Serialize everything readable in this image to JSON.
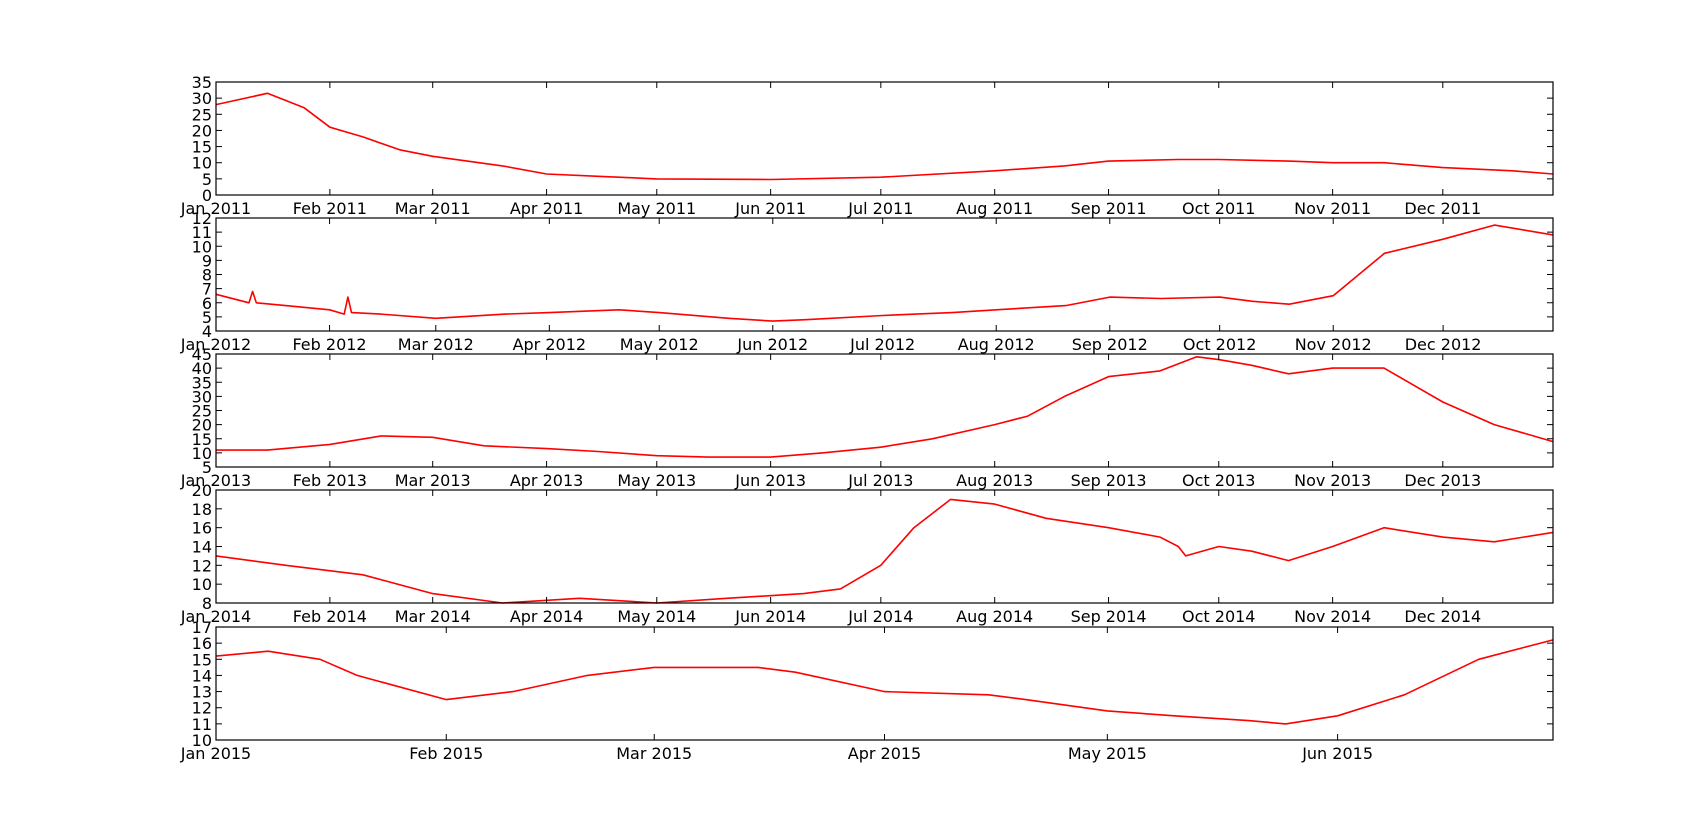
{
  "line_color": "#ff0000",
  "chart_data": [
    {
      "type": "line",
      "series": [
        {
          "x": [
            "2011-01-01",
            "2011-01-15",
            "2011-01-25",
            "2011-02-01",
            "2011-02-10",
            "2011-02-20",
            "2011-03-01",
            "2011-03-20",
            "2011-04-01",
            "2011-04-15",
            "2011-05-01",
            "2011-06-01",
            "2011-07-01",
            "2011-08-01",
            "2011-08-20",
            "2011-09-01",
            "2011-09-20",
            "2011-10-01",
            "2011-10-20",
            "2011-11-01",
            "2011-11-15",
            "2011-12-01",
            "2011-12-20",
            "2011-12-31"
          ],
          "y": [
            28,
            31.5,
            27,
            21,
            18,
            14,
            12,
            9,
            6.5,
            5.8,
            5,
            4.8,
            5.5,
            7.5,
            9,
            10.5,
            11,
            11,
            10.5,
            10,
            10,
            8.5,
            7.5,
            6.5
          ]
        }
      ],
      "x_ticks": [
        "2011-01-01",
        "2011-02-01",
        "2011-03-01",
        "2011-04-01",
        "2011-05-01",
        "2011-06-01",
        "2011-07-01",
        "2011-08-01",
        "2011-09-01",
        "2011-10-01",
        "2011-11-01",
        "2011-12-01"
      ],
      "x_tick_labels": [
        "Jan 2011",
        "Feb 2011",
        "Mar 2011",
        "Apr 2011",
        "May 2011",
        "Jun 2011",
        "Jul 2011",
        "Aug 2011",
        "Sep 2011",
        "Oct 2011",
        "Nov 2011",
        "Dec 2011"
      ],
      "xlim": [
        "2011-01-01",
        "2011-12-31"
      ],
      "ylim": [
        0,
        35
      ],
      "y_ticks": [
        0,
        5,
        10,
        15,
        20,
        25,
        30,
        35
      ]
    },
    {
      "type": "line",
      "series": [
        {
          "x": [
            "2012-01-01",
            "2012-01-10",
            "2012-01-11",
            "2012-01-12",
            "2012-01-20",
            "2012-02-01",
            "2012-02-05",
            "2012-02-06",
            "2012-02-07",
            "2012-02-15",
            "2012-03-01",
            "2012-03-20",
            "2012-04-01",
            "2012-04-20",
            "2012-05-01",
            "2012-05-20",
            "2012-06-01",
            "2012-06-10",
            "2012-07-01",
            "2012-07-20",
            "2012-08-01",
            "2012-08-20",
            "2012-09-01",
            "2012-09-15",
            "2012-10-01",
            "2012-10-10",
            "2012-10-20",
            "2012-11-01",
            "2012-11-15",
            "2012-12-01",
            "2012-12-15",
            "2012-12-31"
          ],
          "y": [
            6.6,
            6.0,
            6.8,
            6.0,
            5.8,
            5.5,
            5.2,
            6.4,
            5.3,
            5.2,
            4.9,
            5.2,
            5.3,
            5.5,
            5.3,
            4.9,
            4.7,
            4.8,
            5.1,
            5.3,
            5.5,
            5.8,
            6.4,
            6.3,
            6.4,
            6.1,
            5.9,
            6.5,
            9.5,
            10.5,
            11.5,
            10.8
          ]
        }
      ],
      "x_ticks": [
        "2012-01-01",
        "2012-02-01",
        "2012-03-01",
        "2012-04-01",
        "2012-05-01",
        "2012-06-01",
        "2012-07-01",
        "2012-08-01",
        "2012-09-01",
        "2012-10-01",
        "2012-11-01",
        "2012-12-01"
      ],
      "x_tick_labels": [
        "Jan 2012",
        "Feb 2012",
        "Mar 2012",
        "Apr 2012",
        "May 2012",
        "Jun 2012",
        "Jul 2012",
        "Aug 2012",
        "Sep 2012",
        "Oct 2012",
        "Nov 2012",
        "Dec 2012"
      ],
      "xlim": [
        "2012-01-01",
        "2012-12-31"
      ],
      "ylim": [
        4,
        12
      ],
      "y_ticks": [
        4,
        5,
        6,
        7,
        8,
        9,
        10,
        11,
        12
      ]
    },
    {
      "type": "line",
      "series": [
        {
          "x": [
            "2013-01-01",
            "2013-01-15",
            "2013-02-01",
            "2013-02-15",
            "2013-03-01",
            "2013-03-15",
            "2013-04-01",
            "2013-04-15",
            "2013-05-01",
            "2013-05-15",
            "2013-06-01",
            "2013-06-15",
            "2013-07-01",
            "2013-07-15",
            "2013-08-01",
            "2013-08-10",
            "2013-08-20",
            "2013-09-01",
            "2013-09-15",
            "2013-09-25",
            "2013-10-01",
            "2013-10-10",
            "2013-10-20",
            "2013-11-01",
            "2013-11-15",
            "2013-12-01",
            "2013-12-15",
            "2013-12-31"
          ],
          "y": [
            11,
            11,
            13,
            16,
            15.5,
            12.5,
            11.5,
            10.5,
            9,
            8.5,
            8.5,
            10,
            12,
            15,
            20,
            23,
            30,
            37,
            39,
            44,
            43,
            41,
            38,
            40,
            40,
            28,
            20,
            14
          ]
        }
      ],
      "x_ticks": [
        "2013-01-01",
        "2013-02-01",
        "2013-03-01",
        "2013-04-01",
        "2013-05-01",
        "2013-06-01",
        "2013-07-01",
        "2013-08-01",
        "2013-09-01",
        "2013-10-01",
        "2013-11-01",
        "2013-12-01"
      ],
      "x_tick_labels": [
        "Jan 2013",
        "Feb 2013",
        "Mar 2013",
        "Apr 2013",
        "May 2013",
        "Jun 2013",
        "Jul 2013",
        "Aug 2013",
        "Sep 2013",
        "Oct 2013",
        "Nov 2013",
        "Dec 2013"
      ],
      "xlim": [
        "2013-01-01",
        "2013-12-31"
      ],
      "ylim": [
        5,
        45
      ],
      "y_ticks": [
        5,
        10,
        15,
        20,
        25,
        30,
        35,
        40,
        45
      ]
    },
    {
      "type": "line",
      "series": [
        {
          "x": [
            "2014-01-01",
            "2014-01-20",
            "2014-02-10",
            "2014-03-01",
            "2014-03-20",
            "2014-04-10",
            "2014-05-01",
            "2014-05-20",
            "2014-06-10",
            "2014-06-20",
            "2014-07-01",
            "2014-07-10",
            "2014-07-20",
            "2014-08-01",
            "2014-08-15",
            "2014-09-01",
            "2014-09-15",
            "2014-09-20",
            "2014-09-22",
            "2014-10-01",
            "2014-10-10",
            "2014-10-20",
            "2014-11-01",
            "2014-11-15",
            "2014-12-01",
            "2014-12-15",
            "2014-12-31"
          ],
          "y": [
            13,
            12,
            11,
            9,
            8,
            8.5,
            8,
            8.5,
            9,
            9.5,
            12,
            16,
            19,
            18.5,
            17,
            16,
            15,
            14,
            13,
            14,
            13.5,
            12.5,
            14,
            16,
            15,
            14.5,
            15.5
          ]
        }
      ],
      "x_ticks": [
        "2014-01-01",
        "2014-02-01",
        "2014-03-01",
        "2014-04-01",
        "2014-05-01",
        "2014-06-01",
        "2014-07-01",
        "2014-08-01",
        "2014-09-01",
        "2014-10-01",
        "2014-11-01",
        "2014-12-01"
      ],
      "x_tick_labels": [
        "Jan 2014",
        "Feb 2014",
        "Mar 2014",
        "Apr 2014",
        "May 2014",
        "Jun 2014",
        "Jul 2014",
        "Aug 2014",
        "Sep 2014",
        "Oct 2014",
        "Nov 2014",
        "Dec 2014"
      ],
      "xlim": [
        "2014-01-01",
        "2014-12-31"
      ],
      "ylim": [
        8,
        20
      ],
      "y_ticks": [
        8,
        10,
        12,
        14,
        16,
        18,
        20
      ]
    },
    {
      "type": "line",
      "series": [
        {
          "x": [
            "2015-01-01",
            "2015-01-08",
            "2015-01-15",
            "2015-01-20",
            "2015-02-01",
            "2015-02-10",
            "2015-02-20",
            "2015-03-01",
            "2015-03-15",
            "2015-03-20",
            "2015-04-01",
            "2015-04-15",
            "2015-04-20",
            "2015-05-01",
            "2015-05-10",
            "2015-05-20",
            "2015-05-25",
            "2015-06-01",
            "2015-06-10",
            "2015-06-20",
            "2015-06-30"
          ],
          "y": [
            15.2,
            15.5,
            15,
            14,
            12.5,
            13,
            14,
            14.5,
            14.5,
            14.2,
            13,
            12.8,
            12.5,
            11.8,
            11.5,
            11.2,
            11,
            11.5,
            12.8,
            15,
            16.2
          ]
        }
      ],
      "x_ticks": [
        "2015-01-01",
        "2015-02-01",
        "2015-03-01",
        "2015-04-01",
        "2015-05-01",
        "2015-06-01"
      ],
      "x_tick_labels": [
        "Jan 2015",
        "Feb 2015",
        "Mar 2015",
        "Apr 2015",
        "May 2015",
        "Jun 2015"
      ],
      "xlim": [
        "2015-01-01",
        "2015-06-30"
      ],
      "ylim": [
        10,
        17
      ],
      "y_ticks": [
        10,
        11,
        12,
        13,
        14,
        15,
        16,
        17
      ]
    }
  ]
}
